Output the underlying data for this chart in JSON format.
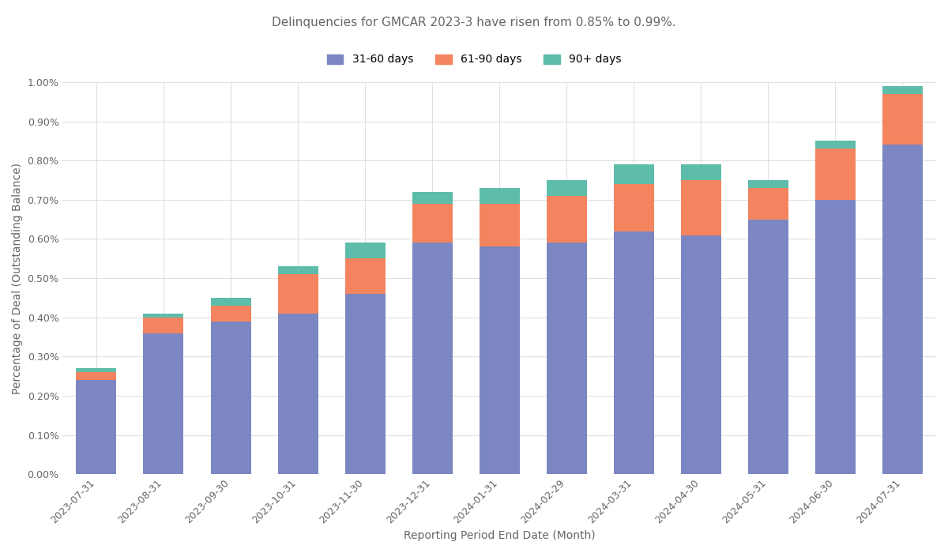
{
  "categories": [
    "2023-07-31",
    "2023-08-31",
    "2023-09-30",
    "2023-10-31",
    "2023-11-30",
    "2023-12-31",
    "2024-01-31",
    "2024-02-29",
    "2024-03-31",
    "2024-04-30",
    "2024-05-31",
    "2024-06-30",
    "2024-07-31"
  ],
  "days_31_60": [
    0.0024,
    0.0036,
    0.0039,
    0.0041,
    0.0046,
    0.0059,
    0.0058,
    0.0059,
    0.0062,
    0.0061,
    0.0065,
    0.007,
    0.0084
  ],
  "days_61_90": [
    0.0002,
    0.0004,
    0.0004,
    0.001,
    0.0009,
    0.001,
    0.0011,
    0.0012,
    0.0012,
    0.0014,
    0.0008,
    0.0013,
    0.0013
  ],
  "days_90plus": [
    0.0001,
    0.0001,
    0.0002,
    0.0002,
    0.0004,
    0.0003,
    0.0004,
    0.0004,
    0.0005,
    0.0004,
    0.0002,
    0.0002,
    0.0002
  ],
  "color_31_60": "#7b86c2",
  "color_61_90": "#f4845f",
  "color_90plus": "#5dbcaa",
  "title": "Delinquencies for GMCAR 2023-3 have risen from 0.85% to 0.99%.",
  "xlabel": "Reporting Period End Date (Month)",
  "ylabel": "Percentage of Deal (Outstanding Balance)",
  "ylim_min": 0.0,
  "ylim_max": 0.01,
  "ytick_interval": 0.001,
  "background_color": "#ffffff",
  "grid_color": "#e0e0e0",
  "legend_labels": [
    "31-60 days",
    "61-90 days",
    "90+ days"
  ],
  "title_fontsize": 11,
  "label_fontsize": 10,
  "tick_fontsize": 9,
  "title_color": "#666666",
  "label_color": "#666666",
  "tick_color": "#666666"
}
